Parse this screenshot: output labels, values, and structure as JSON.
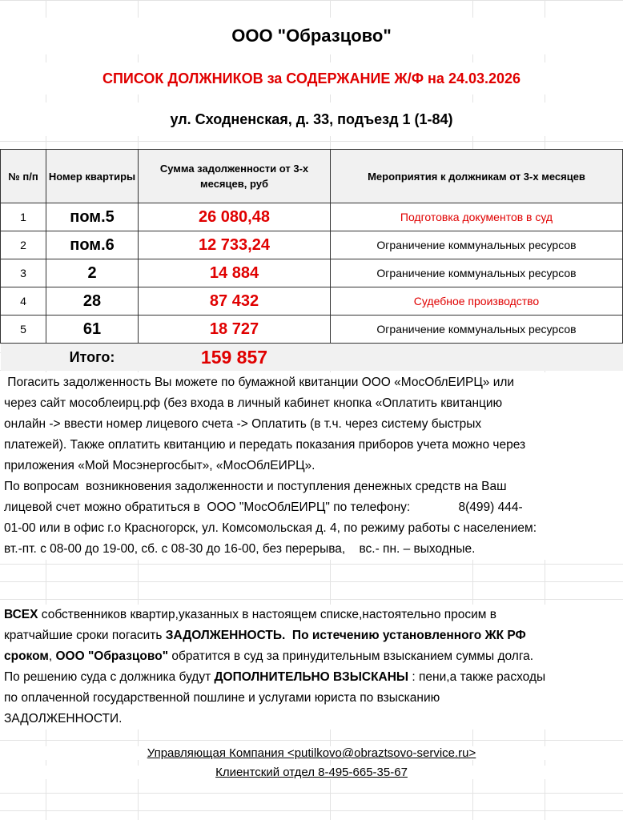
{
  "title": "ООО \"Образцово\"",
  "subtitle": "СПИСОК ДОЛЖНИКОВ за СОДЕРЖАНИЕ Ж/Ф  на 24.03.2026",
  "address": "ул. Сходненская, д. 33, подъезд 1 (1-84)",
  "table": {
    "headers": [
      "№ п/п",
      "Номер квартиры",
      "Сумма  задолженности от  3-х месяцев, руб",
      "Мероприятия к должникам от 3-х месяцев"
    ],
    "rows": [
      {
        "n": "1",
        "apt": "пом.5",
        "sum": "26 080,48",
        "action": "Подготовка  документов   в суд",
        "action_red": true
      },
      {
        "n": "2",
        "apt": "пом.6",
        "sum": "12 733,24",
        "action": "Ограничение  коммунальных  ресурсов",
        "action_red": false
      },
      {
        "n": "3",
        "apt": "2",
        "sum": "14 884",
        "action": "Ограничение  коммунальных  ресурсов",
        "action_red": false
      },
      {
        "n": "4",
        "apt": "28",
        "sum": "87 432",
        "action": "Судебное производство",
        "action_red": true
      },
      {
        "n": "5",
        "apt": "61",
        "sum": "18 727",
        "action": "Ограничение  коммунальных  ресурсов",
        "action_red": false
      }
    ],
    "total_label": "Итого:",
    "total_value": "159 857"
  },
  "info_lines": [
    [
      {
        "t": " Погасить задолженность Вы можете по бумажной квитанции ООО «МосОблЕИРЦ» или"
      }
    ],
    [
      {
        "t": "через сайт мособлеирц.рф (без входа в личный кабинет кнопка «Оплатить квитанцию"
      }
    ],
    [
      {
        "t": "онлайн -> ввести номер лицевого счета -> Оплатить (в т.ч. через систему быстрых"
      }
    ],
    [
      {
        "t": "платежей). Также оплатить квитанцию и передать показания приборов учета можно через"
      }
    ],
    [
      {
        "t": "приложения «Мой Мосэнергосбыт», «МосОблЕИРЦ»."
      }
    ],
    [
      {
        "t": "По вопросам  возникновения задолженности и поступления денежных средств на Ваш"
      }
    ],
    [
      {
        "t": "лицевой счет можно обратиться в  ООО \"МосОблЕИРЦ\" по телефону:              8(499) 444-"
      }
    ],
    [
      {
        "t": "01-00 или в офис г.о Красногорск, ул. Комсомольская д. 4, по режиму работы с населением:"
      }
    ],
    [
      {
        "t": "вт.-пт. с 08-00 до 19-00, сб. с 08-30 до 16-00, без перерыва,    вс.- пн. – выходные."
      }
    ]
  ],
  "notice_lines": [
    [
      {
        "t": "ВСЕХ",
        "b": true
      },
      {
        "t": " собственников квартир,указанных в настоящем списке,настоятельно просим в"
      }
    ],
    [
      {
        "t": "кратчайшие сроки погасить "
      },
      {
        "t": "ЗАДОЛЖЕННОСТЬ.  По истечению установленного ЖК РФ",
        "b": true
      }
    ],
    [
      {
        "t": "сроком",
        "b": true
      },
      {
        "t": ", "
      },
      {
        "t": "ООО \"Образцово\"",
        "b": true
      },
      {
        "t": " обратится в суд за принудительным взысканием суммы долга."
      }
    ],
    [
      {
        "t": "По решению суда с должника будут "
      },
      {
        "t": "ДОПОЛНИТЕЛЬНО ВЗЫСКАНЫ",
        "b": true
      },
      {
        "t": " : пени,а также расходы"
      }
    ],
    [
      {
        "t": "по оплаченной государственной пошлине и услугами юриста по взысканию"
      }
    ],
    [
      {
        "t": "ЗАДОЛЖЕННОСТИ."
      }
    ]
  ],
  "footer": {
    "company": "Управляющая Компания <putilkovo@obraztsovo-service.ru>",
    "client_dept": "Клиентский  отдел  8-495-665-35-67"
  }
}
